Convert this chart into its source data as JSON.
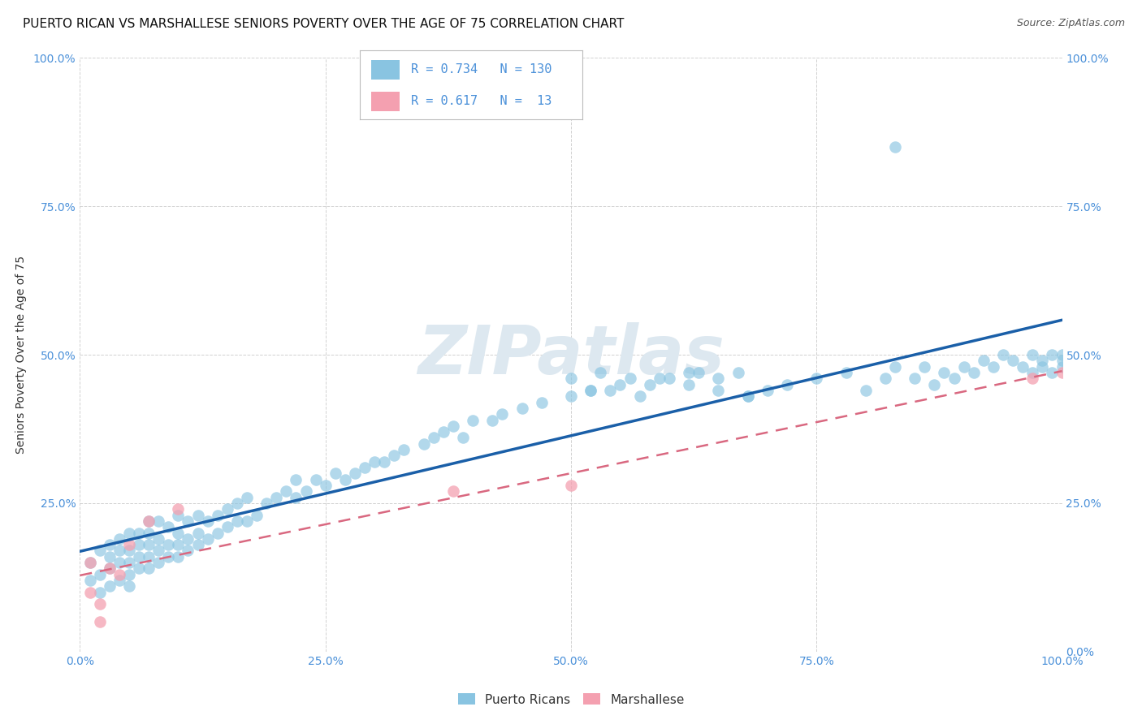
{
  "title": "PUERTO RICAN VS MARSHALLESE SENIORS POVERTY OVER THE AGE OF 75 CORRELATION CHART",
  "source": "Source: ZipAtlas.com",
  "ylabel": "Seniors Poverty Over the Age of 75",
  "xlim": [
    0,
    1
  ],
  "ylim": [
    0,
    1
  ],
  "blue_color": "#89c4e1",
  "blue_edge_color": "#89c4e1",
  "pink_color": "#f4a0b0",
  "pink_edge_color": "#f4a0b0",
  "blue_line_color": "#1a5fa8",
  "pink_line_color": "#d96880",
  "grid_color": "#cccccc",
  "watermark": "ZIPatlas",
  "blue_R": 0.734,
  "blue_N": 130,
  "pink_R": 0.617,
  "pink_N": 13,
  "title_fontsize": 11,
  "source_fontsize": 9,
  "axis_label_fontsize": 10,
  "tick_fontsize": 10,
  "tick_color": "#4a90d9",
  "watermark_fontsize": 60,
  "watermark_color": "#dde8f0",
  "background_color": "#ffffff",
  "blue_x": [
    0.01,
    0.01,
    0.02,
    0.02,
    0.02,
    0.03,
    0.03,
    0.03,
    0.03,
    0.04,
    0.04,
    0.04,
    0.04,
    0.05,
    0.05,
    0.05,
    0.05,
    0.05,
    0.06,
    0.06,
    0.06,
    0.06,
    0.07,
    0.07,
    0.07,
    0.07,
    0.07,
    0.08,
    0.08,
    0.08,
    0.08,
    0.09,
    0.09,
    0.09,
    0.1,
    0.1,
    0.1,
    0.1,
    0.11,
    0.11,
    0.11,
    0.12,
    0.12,
    0.12,
    0.13,
    0.13,
    0.14,
    0.14,
    0.15,
    0.15,
    0.16,
    0.16,
    0.17,
    0.17,
    0.18,
    0.19,
    0.2,
    0.21,
    0.22,
    0.22,
    0.23,
    0.24,
    0.25,
    0.26,
    0.27,
    0.28,
    0.29,
    0.3,
    0.31,
    0.32,
    0.33,
    0.35,
    0.36,
    0.37,
    0.38,
    0.39,
    0.4,
    0.42,
    0.43,
    0.45,
    0.47,
    0.5,
    0.52,
    0.54,
    0.56,
    0.58,
    0.6,
    0.62,
    0.63,
    0.65,
    0.67,
    0.68,
    0.7,
    0.72,
    0.75,
    0.78,
    0.8,
    0.82,
    0.83,
    0.85,
    0.86,
    0.87,
    0.88,
    0.89,
    0.9,
    0.91,
    0.92,
    0.93,
    0.94,
    0.95,
    0.96,
    0.97,
    0.97,
    0.98,
    0.98,
    0.99,
    0.99,
    1.0,
    1.0,
    1.0,
    0.83,
    0.5,
    0.52,
    0.53,
    0.55,
    0.57,
    0.59,
    0.62,
    0.65,
    0.68
  ],
  "blue_y": [
    0.12,
    0.15,
    0.1,
    0.13,
    0.17,
    0.11,
    0.14,
    0.16,
    0.18,
    0.12,
    0.15,
    0.17,
    0.19,
    0.11,
    0.13,
    0.15,
    0.17,
    0.2,
    0.14,
    0.16,
    0.18,
    0.2,
    0.14,
    0.16,
    0.18,
    0.2,
    0.22,
    0.15,
    0.17,
    0.19,
    0.22,
    0.16,
    0.18,
    0.21,
    0.16,
    0.18,
    0.2,
    0.23,
    0.17,
    0.19,
    0.22,
    0.18,
    0.2,
    0.23,
    0.19,
    0.22,
    0.2,
    0.23,
    0.21,
    0.24,
    0.22,
    0.25,
    0.22,
    0.26,
    0.23,
    0.25,
    0.26,
    0.27,
    0.26,
    0.29,
    0.27,
    0.29,
    0.28,
    0.3,
    0.29,
    0.3,
    0.31,
    0.32,
    0.32,
    0.33,
    0.34,
    0.35,
    0.36,
    0.37,
    0.38,
    0.36,
    0.39,
    0.39,
    0.4,
    0.41,
    0.42,
    0.43,
    0.44,
    0.44,
    0.46,
    0.45,
    0.46,
    0.47,
    0.47,
    0.46,
    0.47,
    0.43,
    0.44,
    0.45,
    0.46,
    0.47,
    0.44,
    0.46,
    0.48,
    0.46,
    0.48,
    0.45,
    0.47,
    0.46,
    0.48,
    0.47,
    0.49,
    0.48,
    0.5,
    0.49,
    0.48,
    0.47,
    0.5,
    0.48,
    0.49,
    0.47,
    0.5,
    0.48,
    0.49,
    0.5,
    0.85,
    0.46,
    0.44,
    0.47,
    0.45,
    0.43,
    0.46,
    0.45,
    0.44,
    0.43
  ],
  "pink_x": [
    0.01,
    0.01,
    0.02,
    0.03,
    0.04,
    0.05,
    0.07,
    0.1,
    0.38,
    0.5,
    0.97,
    1.0,
    0.02
  ],
  "pink_y": [
    0.1,
    0.15,
    0.05,
    0.14,
    0.13,
    0.18,
    0.22,
    0.24,
    0.27,
    0.28,
    0.46,
    0.47,
    0.08
  ],
  "blue_line_x0": 0.0,
  "blue_line_x1": 1.0,
  "blue_line_y0": 0.09,
  "blue_line_y1": 0.47,
  "pink_line_x0": 0.0,
  "pink_line_x1": 1.0,
  "pink_line_y0": 0.09,
  "pink_line_y1": 0.47
}
